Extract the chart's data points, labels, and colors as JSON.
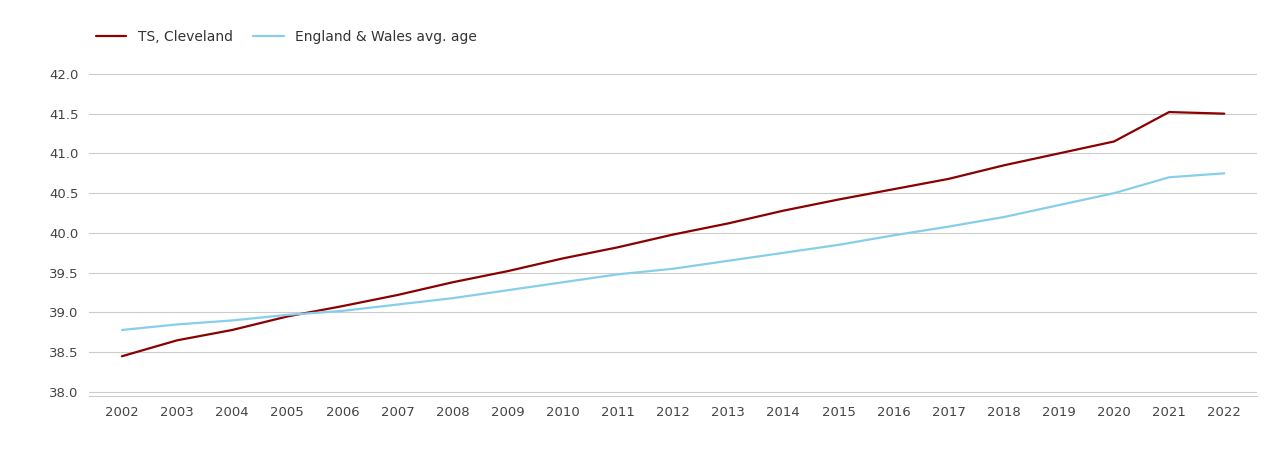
{
  "years": [
    2002,
    2003,
    2004,
    2005,
    2006,
    2007,
    2008,
    2009,
    2010,
    2011,
    2012,
    2013,
    2014,
    2015,
    2016,
    2017,
    2018,
    2019,
    2020,
    2021,
    2022
  ],
  "cleveland": [
    38.45,
    38.65,
    38.78,
    38.95,
    39.08,
    39.22,
    39.38,
    39.52,
    39.68,
    39.82,
    39.98,
    40.12,
    40.28,
    40.42,
    40.55,
    40.68,
    40.85,
    41.0,
    41.15,
    41.52,
    41.5
  ],
  "england_wales": [
    38.78,
    38.85,
    38.9,
    38.97,
    39.02,
    39.1,
    39.18,
    39.28,
    39.38,
    39.48,
    39.55,
    39.65,
    39.75,
    39.85,
    39.97,
    40.08,
    40.2,
    40.35,
    40.5,
    40.7,
    40.75
  ],
  "cleveland_color": "#8B0000",
  "england_wales_color": "#87CEEB",
  "cleveland_label": "TS, Cleveland",
  "england_wales_label": "England & Wales avg. age",
  "ylim_min": 37.95,
  "ylim_max": 42.25,
  "yticks": [
    38.0,
    38.5,
    39.0,
    39.5,
    40.0,
    40.5,
    41.0,
    41.5,
    42.0
  ],
  "xlim_min": 2001.4,
  "xlim_max": 2022.6,
  "background_color": "#ffffff",
  "grid_color": "#cccccc",
  "line_width": 1.6,
  "tick_fontsize": 9.5,
  "legend_fontsize": 10
}
